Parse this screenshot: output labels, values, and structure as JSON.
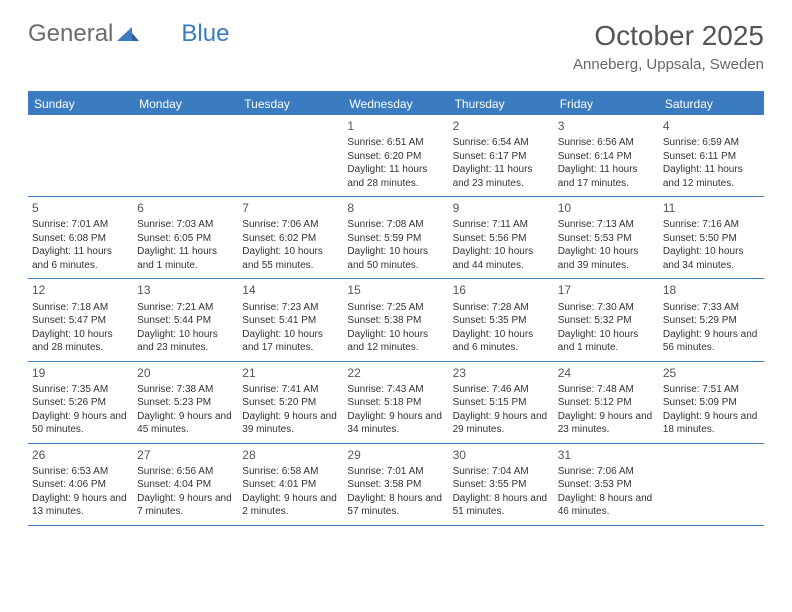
{
  "logo": {
    "text1": "General",
    "text2": "Blue"
  },
  "title": "October 2025",
  "location": "Anneberg, Uppsala, Sweden",
  "colors": {
    "header_bg": "#3b7bbf",
    "header_text": "#ffffff",
    "border": "#3b7bbf",
    "text": "#333333",
    "title_text": "#555555",
    "logo_gray": "#6b6b6b",
    "logo_blue": "#3b7bbf"
  },
  "day_names": [
    "Sunday",
    "Monday",
    "Tuesday",
    "Wednesday",
    "Thursday",
    "Friday",
    "Saturday"
  ],
  "weeks": [
    [
      null,
      null,
      null,
      {
        "n": "1",
        "sr": "6:51 AM",
        "ss": "6:20 PM",
        "dl": "11 hours and 28 minutes."
      },
      {
        "n": "2",
        "sr": "6:54 AM",
        "ss": "6:17 PM",
        "dl": "11 hours and 23 minutes."
      },
      {
        "n": "3",
        "sr": "6:56 AM",
        "ss": "6:14 PM",
        "dl": "11 hours and 17 minutes."
      },
      {
        "n": "4",
        "sr": "6:59 AM",
        "ss": "6:11 PM",
        "dl": "11 hours and 12 minutes."
      }
    ],
    [
      {
        "n": "5",
        "sr": "7:01 AM",
        "ss": "6:08 PM",
        "dl": "11 hours and 6 minutes."
      },
      {
        "n": "6",
        "sr": "7:03 AM",
        "ss": "6:05 PM",
        "dl": "11 hours and 1 minute."
      },
      {
        "n": "7",
        "sr": "7:06 AM",
        "ss": "6:02 PM",
        "dl": "10 hours and 55 minutes."
      },
      {
        "n": "8",
        "sr": "7:08 AM",
        "ss": "5:59 PM",
        "dl": "10 hours and 50 minutes."
      },
      {
        "n": "9",
        "sr": "7:11 AM",
        "ss": "5:56 PM",
        "dl": "10 hours and 44 minutes."
      },
      {
        "n": "10",
        "sr": "7:13 AM",
        "ss": "5:53 PM",
        "dl": "10 hours and 39 minutes."
      },
      {
        "n": "11",
        "sr": "7:16 AM",
        "ss": "5:50 PM",
        "dl": "10 hours and 34 minutes."
      }
    ],
    [
      {
        "n": "12",
        "sr": "7:18 AM",
        "ss": "5:47 PM",
        "dl": "10 hours and 28 minutes."
      },
      {
        "n": "13",
        "sr": "7:21 AM",
        "ss": "5:44 PM",
        "dl": "10 hours and 23 minutes."
      },
      {
        "n": "14",
        "sr": "7:23 AM",
        "ss": "5:41 PM",
        "dl": "10 hours and 17 minutes."
      },
      {
        "n": "15",
        "sr": "7:25 AM",
        "ss": "5:38 PM",
        "dl": "10 hours and 12 minutes."
      },
      {
        "n": "16",
        "sr": "7:28 AM",
        "ss": "5:35 PM",
        "dl": "10 hours and 6 minutes."
      },
      {
        "n": "17",
        "sr": "7:30 AM",
        "ss": "5:32 PM",
        "dl": "10 hours and 1 minute."
      },
      {
        "n": "18",
        "sr": "7:33 AM",
        "ss": "5:29 PM",
        "dl": "9 hours and 56 minutes."
      }
    ],
    [
      {
        "n": "19",
        "sr": "7:35 AM",
        "ss": "5:26 PM",
        "dl": "9 hours and 50 minutes."
      },
      {
        "n": "20",
        "sr": "7:38 AM",
        "ss": "5:23 PM",
        "dl": "9 hours and 45 minutes."
      },
      {
        "n": "21",
        "sr": "7:41 AM",
        "ss": "5:20 PM",
        "dl": "9 hours and 39 minutes."
      },
      {
        "n": "22",
        "sr": "7:43 AM",
        "ss": "5:18 PM",
        "dl": "9 hours and 34 minutes."
      },
      {
        "n": "23",
        "sr": "7:46 AM",
        "ss": "5:15 PM",
        "dl": "9 hours and 29 minutes."
      },
      {
        "n": "24",
        "sr": "7:48 AM",
        "ss": "5:12 PM",
        "dl": "9 hours and 23 minutes."
      },
      {
        "n": "25",
        "sr": "7:51 AM",
        "ss": "5:09 PM",
        "dl": "9 hours and 18 minutes."
      }
    ],
    [
      {
        "n": "26",
        "sr": "6:53 AM",
        "ss": "4:06 PM",
        "dl": "9 hours and 13 minutes."
      },
      {
        "n": "27",
        "sr": "6:56 AM",
        "ss": "4:04 PM",
        "dl": "9 hours and 7 minutes."
      },
      {
        "n": "28",
        "sr": "6:58 AM",
        "ss": "4:01 PM",
        "dl": "9 hours and 2 minutes."
      },
      {
        "n": "29",
        "sr": "7:01 AM",
        "ss": "3:58 PM",
        "dl": "8 hours and 57 minutes."
      },
      {
        "n": "30",
        "sr": "7:04 AM",
        "ss": "3:55 PM",
        "dl": "8 hours and 51 minutes."
      },
      {
        "n": "31",
        "sr": "7:06 AM",
        "ss": "3:53 PM",
        "dl": "8 hours and 46 minutes."
      },
      null
    ]
  ],
  "labels": {
    "sunrise": "Sunrise:",
    "sunset": "Sunset:",
    "daylight": "Daylight:"
  }
}
